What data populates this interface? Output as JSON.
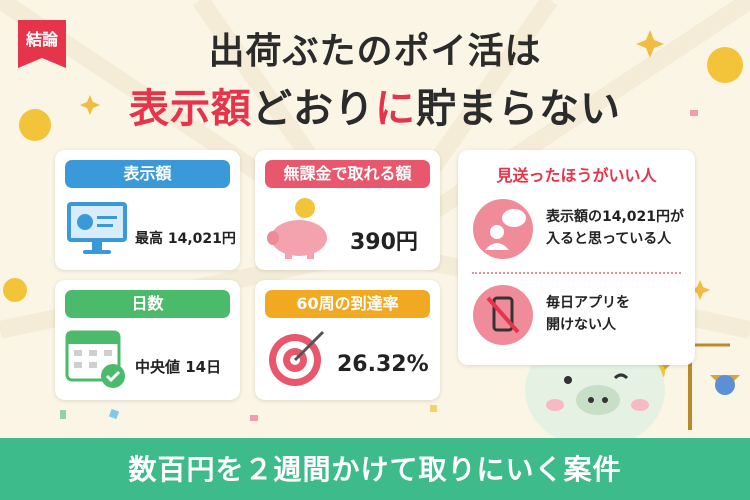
{
  "badge": "結論",
  "title": {
    "line1": "出荷ぶたのポイ活は",
    "line2": [
      {
        "text": "表示額",
        "accent": true
      },
      {
        "text": "どおり",
        "accent": false
      },
      {
        "text": "に",
        "accent": true
      },
      {
        "text": "貯まらない",
        "accent": false
      }
    ]
  },
  "cards": [
    {
      "header": "表示額",
      "value": [
        "最高 14,021円"
      ]
    },
    {
      "header": "無課金で取れる額",
      "value": [
        "390円"
      ]
    },
    {
      "header": "日数",
      "value": [
        "中央値 14日"
      ]
    },
    {
      "header": "60周の到達率",
      "value": [
        "26.32%"
      ]
    }
  ],
  "panel": {
    "title": "見送ったほうがいい人",
    "items": [
      [
        "表示額の14,021円が",
        "入ると思っている人"
      ],
      [
        "毎日アプリを",
        "開けない人"
      ]
    ]
  },
  "footer": "数百円を２週間かけて取りにいく案件"
}
